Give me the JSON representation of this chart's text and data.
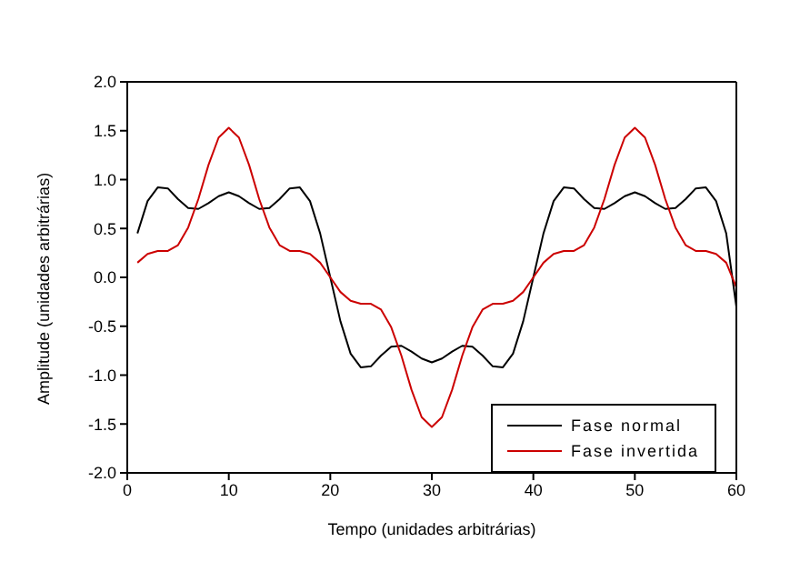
{
  "chart_data": {
    "type": "line",
    "xlabel": "Tempo (unidades arbitrárias)",
    "ylabel": "Amplitude (unidades arbitrárias)",
    "x": [
      1,
      2,
      3,
      4,
      5,
      6,
      7,
      8,
      9,
      10,
      11,
      12,
      13,
      14,
      15,
      16,
      17,
      18,
      19,
      20,
      21,
      22,
      23,
      24,
      25,
      26,
      27,
      28,
      29,
      30,
      31,
      32,
      33,
      34,
      35,
      36,
      37,
      38,
      39,
      40,
      41,
      42,
      43,
      44,
      45,
      46,
      47,
      48,
      49,
      50,
      51,
      52,
      53,
      54,
      55,
      56,
      57,
      58,
      59,
      60
    ],
    "series": [
      {
        "name": "Fase normal",
        "color": "#000000",
        "values": [
          0.45,
          0.78,
          0.92,
          0.91,
          0.8,
          0.71,
          0.7,
          0.76,
          0.83,
          0.87,
          0.83,
          0.76,
          0.7,
          0.71,
          0.8,
          0.91,
          0.92,
          0.78,
          0.45,
          0,
          -0.45,
          -0.78,
          -0.92,
          -0.91,
          -0.8,
          -0.71,
          -0.7,
          -0.76,
          -0.83,
          -0.87,
          -0.83,
          -0.76,
          -0.7,
          -0.71,
          -0.8,
          -0.91,
          -0.92,
          -0.78,
          -0.45,
          0,
          0.45,
          0.78,
          0.92,
          0.91,
          0.8,
          0.71,
          0.7,
          0.76,
          0.83,
          0.87,
          0.83,
          0.76,
          0.7,
          0.71,
          0.8,
          0.91,
          0.92,
          0.78,
          0.45,
          -0.3
        ]
      },
      {
        "name": "Fase invertida",
        "color": "#cc0000",
        "values": [
          0.15,
          0.24,
          0.27,
          0.27,
          0.33,
          0.51,
          0.8,
          1.15,
          1.43,
          1.53,
          1.43,
          1.15,
          0.8,
          0.51,
          0.33,
          0.27,
          0.27,
          0.24,
          0.15,
          0,
          -0.15,
          -0.24,
          -0.27,
          -0.27,
          -0.33,
          -0.51,
          -0.8,
          -1.15,
          -1.43,
          -1.53,
          -1.43,
          -1.15,
          -0.8,
          -0.51,
          -0.33,
          -0.27,
          -0.27,
          -0.24,
          -0.15,
          0,
          0.15,
          0.24,
          0.27,
          0.27,
          0.33,
          0.51,
          0.8,
          1.15,
          1.43,
          1.53,
          1.43,
          1.15,
          0.8,
          0.51,
          0.33,
          0.27,
          0.27,
          0.24,
          0.15,
          -0.1
        ]
      }
    ],
    "xlim": [
      0,
      60
    ],
    "xticks": [
      0,
      10,
      20,
      30,
      40,
      50,
      60
    ],
    "ylim": [
      -2,
      2
    ],
    "yticks": [
      {
        "value": -2,
        "label": "-2.0"
      },
      {
        "value": -1.5,
        "label": "-1.5"
      },
      {
        "value": -1,
        "label": "-1.0"
      },
      {
        "value": -0.5,
        "label": "-0.5"
      },
      {
        "value": 0,
        "label": "0.0"
      },
      {
        "value": 0.5,
        "label": "0.5"
      },
      {
        "value": 1,
        "label": "1.0"
      },
      {
        "value": 1.5,
        "label": "1.5"
      },
      {
        "value": 2,
        "label": "2.0"
      }
    ],
    "grid": false,
    "legend": "bottom right",
    "marker": "none",
    "line_style": "solid"
  }
}
